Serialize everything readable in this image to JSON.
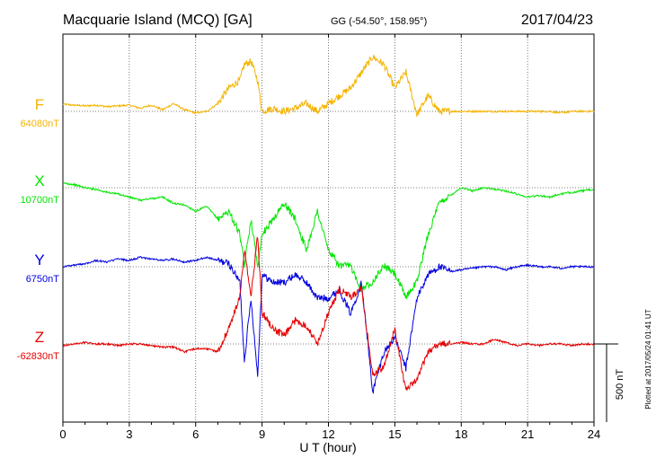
{
  "header": {
    "station": "Macquarie Island (MCQ)  [GA]",
    "coords": "GG (-54.50°, 158.95°)",
    "date": "2017/04/23"
  },
  "footer": {
    "plotted": "Plotted at 2017/05/24 01:41  UT"
  },
  "colors": {
    "F": "#f5b400",
    "X": "#00e600",
    "Y": "#0000e0",
    "Z": "#e60000"
  },
  "chart_data": {
    "type": "line",
    "title": "",
    "xlabel": "U T (hour)",
    "ylabel": "",
    "xlim": [
      0,
      24
    ],
    "xticks": [
      0,
      3,
      6,
      9,
      12,
      15,
      18,
      21,
      24
    ],
    "scale_bar": {
      "label": "500 nT",
      "value_nT": 500
    },
    "series": [
      {
        "name": "F",
        "baseline": "64080nT",
        "x": [
          0,
          0.5,
          1,
          1.5,
          2,
          2.5,
          3,
          3.5,
          4,
          4.5,
          5,
          5.5,
          6,
          6.5,
          7,
          7.5,
          8,
          8.2,
          8.5,
          8.8,
          9,
          9.5,
          10,
          10.5,
          11,
          11.5,
          12,
          12.5,
          13,
          13.5,
          14,
          14.5,
          15,
          15.5,
          16,
          16.5,
          17,
          17.5,
          18,
          18.5,
          19,
          19.5,
          20,
          20.5,
          21,
          21.5,
          22,
          22.5,
          23,
          23.5,
          24
        ],
        "values": [
          45,
          40,
          35,
          40,
          30,
          35,
          40,
          20,
          40,
          10,
          50,
          10,
          -10,
          0,
          50,
          150,
          200,
          300,
          320,
          200,
          0,
          20,
          0,
          20,
          50,
          0,
          50,
          100,
          150,
          250,
          350,
          300,
          150,
          250,
          -20,
          100,
          0,
          0,
          0,
          0,
          0,
          0,
          0,
          0,
          0,
          0,
          0,
          -10,
          0,
          0,
          0
        ]
      },
      {
        "name": "X",
        "baseline": "10700nT",
        "x": [
          0,
          0.5,
          1,
          1.5,
          2,
          2.5,
          3,
          3.5,
          4,
          4.5,
          5,
          5.5,
          6,
          6.5,
          7,
          7.5,
          8,
          8.2,
          8.5,
          8.8,
          9,
          9.5,
          10,
          10.5,
          11,
          11.5,
          12,
          12.5,
          13,
          13.5,
          14,
          14.5,
          15,
          15.5,
          16,
          16.5,
          17,
          17.5,
          18,
          18.5,
          19,
          19.5,
          20,
          20.5,
          21,
          21.5,
          22,
          22.5,
          23,
          23.5,
          24
        ],
        "values": [
          30,
          20,
          0,
          -10,
          -30,
          -40,
          -60,
          -80,
          -70,
          -60,
          -100,
          -110,
          -150,
          -120,
          -200,
          -150,
          -300,
          -500,
          -200,
          -500,
          -300,
          -200,
          -100,
          -200,
          -400,
          -150,
          -400,
          -500,
          -500,
          -650,
          -600,
          -500,
          -550,
          -700,
          -600,
          -300,
          -100,
          -50,
          0,
          -20,
          0,
          -10,
          -20,
          -40,
          -60,
          -50,
          -60,
          -40,
          -30,
          -20,
          -10
        ]
      },
      {
        "name": "Y",
        "baseline": "6750nT",
        "x": [
          0,
          0.5,
          1,
          1.5,
          2,
          2.5,
          3,
          3.5,
          4,
          4.5,
          5,
          5.5,
          6,
          6.5,
          7,
          7.5,
          8,
          8.2,
          8.5,
          8.8,
          9,
          9.5,
          10,
          10.5,
          11,
          11.5,
          12,
          12.5,
          13,
          13.5,
          14,
          14.5,
          15,
          15.5,
          16,
          16.5,
          17,
          17.5,
          18,
          18.5,
          19,
          19.5,
          20,
          20.5,
          21,
          21.5,
          22,
          22.5,
          23,
          23.5,
          24
        ],
        "values": [
          0,
          10,
          20,
          40,
          30,
          50,
          40,
          60,
          50,
          40,
          50,
          30,
          40,
          60,
          40,
          20,
          -100,
          -600,
          -200,
          -700,
          -50,
          -100,
          -100,
          -50,
          -100,
          -200,
          -200,
          -150,
          -300,
          -100,
          -800,
          -550,
          -450,
          -650,
          -200,
          -50,
          0,
          -30,
          -20,
          -10,
          0,
          0,
          -20,
          0,
          10,
          0,
          0,
          -10,
          0,
          0,
          0
        ]
      },
      {
        "name": "Z",
        "baseline": "-62830nT",
        "x": [
          0,
          0.5,
          1,
          1.5,
          2,
          2.5,
          3,
          3.5,
          4,
          4.5,
          5,
          5.5,
          6,
          6.5,
          7,
          7.5,
          8,
          8.2,
          8.5,
          8.8,
          9,
          9.5,
          10,
          10.5,
          11,
          11.5,
          12,
          12.5,
          13,
          13.5,
          14,
          14.5,
          15,
          15.5,
          16,
          16.5,
          17,
          17.5,
          18,
          18.5,
          19,
          19.5,
          20,
          20.5,
          21,
          21.5,
          22,
          22.5,
          23,
          23.5,
          24
        ],
        "values": [
          -10,
          0,
          10,
          0,
          0,
          -10,
          0,
          0,
          -10,
          -20,
          -20,
          -50,
          -30,
          -30,
          -50,
          100,
          300,
          600,
          300,
          700,
          200,
          100,
          50,
          150,
          120,
          0,
          200,
          350,
          300,
          350,
          -200,
          -150,
          100,
          -300,
          -230,
          -50,
          0,
          0,
          10,
          0,
          0,
          30,
          10,
          -10,
          0,
          -10,
          0,
          0,
          -10,
          0,
          0
        ]
      }
    ]
  }
}
